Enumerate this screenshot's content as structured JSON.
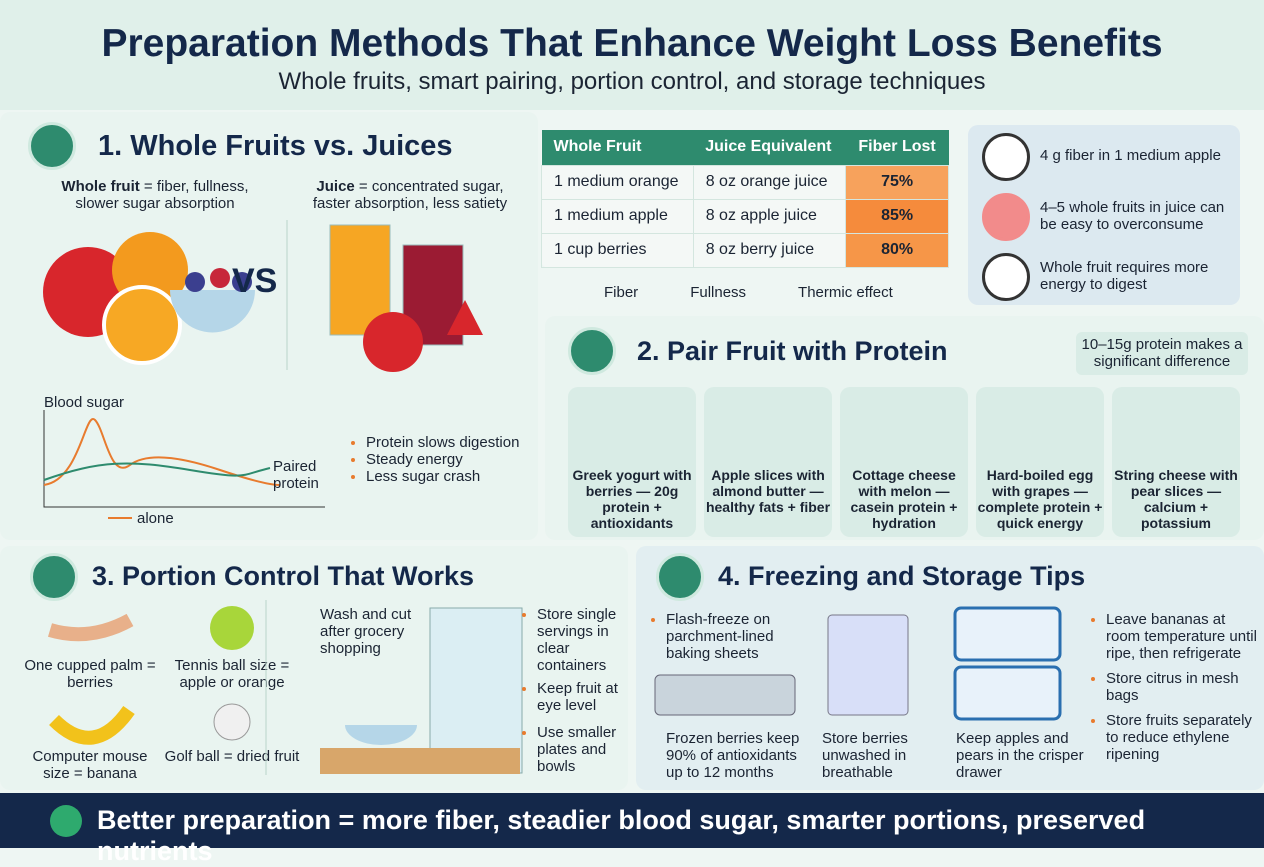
{
  "header": {
    "title": "Preparation Methods That Enhance Weight Loss Benefits",
    "subtitle": "Whole fruits, smart pairing, portion control, and storage techniques"
  },
  "whole_vs_juice": {
    "title": "1. Whole Fruits vs. Juices",
    "whole_label": "Whole fruit",
    "whole_text": "= fiber, fullness, slower sugar absorption",
    "juice_label": "Juice",
    "juice_text": "= concentrated sugar, faster absorption, less satiety",
    "vs": "VS",
    "chart": {
      "label": "Blood sugar",
      "paired": "Paired protein",
      "alone": "alone"
    },
    "bullets": [
      "Protein slows digestion",
      "Steady energy",
      "Less sugar crash"
    ]
  },
  "table": {
    "headers": [
      "Whole Fruit",
      "Juice Equivalent",
      "Fiber Lost"
    ],
    "rows": [
      [
        "1 medium orange",
        "8 oz orange juice",
        "75%"
      ],
      [
        "1 medium apple",
        "8 oz apple juice",
        "85%"
      ],
      [
        "1 cup berries",
        "8 oz berry juice",
        "80%"
      ]
    ]
  },
  "legend": [
    "Fiber",
    "Fullness",
    "Thermic effect"
  ],
  "facts": [
    "4 g fiber in 1 medium apple",
    "4–5 whole fruits in juice can be easy to overconsume",
    "Whole fruit requires more energy to digest"
  ],
  "pairing": {
    "title": "2. Pair Fruit with Protein",
    "note": "10–15g protein makes a significant difference",
    "items": [
      "Greek yogurt with berries — 20g protein + antioxidants",
      "Apple slices with almond butter — healthy fats + fiber",
      "Cottage cheese with melon — casein protein + hydration",
      "Hard-boiled egg with grapes — complete protein + quick energy",
      "String cheese with pear slices — calcium + potassium"
    ]
  },
  "portion": {
    "title": "3. Portion Control That Works",
    "sizes": [
      "One cupped palm = berries",
      "Tennis ball size = apple or orange",
      "Computer mouse size = banana",
      "Golf ball = dried fruit"
    ],
    "prep": "Wash and cut after grocery shopping",
    "bullets": [
      "Store single servings in clear containers",
      "Keep fruit at eye level",
      "Use smaller plates and bowls"
    ]
  },
  "storage": {
    "title": "4. Freezing and Storage Tips",
    "tips": [
      "Flash-freeze on parchment-lined baking sheets",
      "Frozen berries keep 90% of antioxidants up to 12 months",
      "Store berries unwashed in breathable",
      "Keep apples and pears in the crisper drawer"
    ],
    "bullets": [
      "Leave bananas at room temperature until ripe, then refrigerate",
      "Store citrus in mesh bags",
      "Store fruits separately to reduce ethylene ripening"
    ]
  },
  "footer": "Better preparation = more fiber, steadier blood sugar, smarter portions, preserved nutrients"
}
